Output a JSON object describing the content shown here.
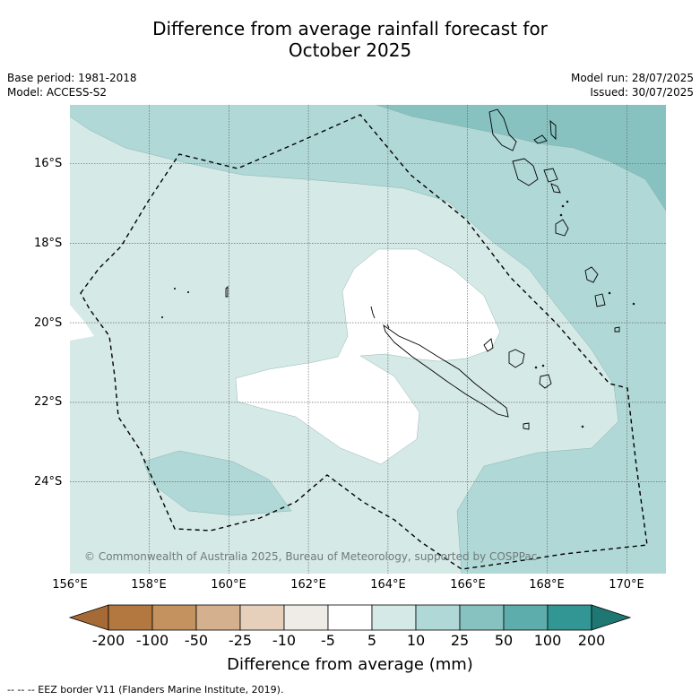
{
  "title": {
    "line1": "Difference from average rainfall forecast for",
    "line2": "October 2025"
  },
  "meta": {
    "base_period": "Base period: 1981-2018",
    "model": "Model: ACCESS-S2",
    "model_run": "Model run: 28/07/2025",
    "issued": "Issued: 30/07/2025"
  },
  "axes": {
    "latitudes": [
      "16°S",
      "18°S",
      "20°S",
      "22°S",
      "24°S"
    ],
    "longitudes": [
      "156°E",
      "158°E",
      "160°E",
      "162°E",
      "164°E",
      "166°E",
      "168°E",
      "170°E"
    ]
  },
  "colorbar": {
    "labels": [
      "-200",
      "-100",
      "-50",
      "-25",
      "-10",
      "-5",
      "5",
      "10",
      "25",
      "50",
      "100",
      "200"
    ],
    "colors": [
      "#a56a35",
      "#b2783f",
      "#c3925f",
      "#d4b08f",
      "#e6d0bc",
      "#efebe7",
      "#ffffff",
      "#d5e9e7",
      "#b0d8d6",
      "#87c2c1",
      "#5cadac",
      "#329794",
      "#1f7773"
    ],
    "title": "Difference from average (mm)"
  },
  "map_colors": {
    "class_5_10": "#d5e9e7",
    "class_10_25": "#b0d8d6",
    "class_25_50": "#87c2c1",
    "class_neutral": "#ffffff"
  },
  "copyright": "© Commonwealth of Australia 2025, Bureau of Meteorology, supported by COSPPac",
  "footnote": "--  --  -- EEZ border V11 (Flanders Marine Institute, 2019)."
}
